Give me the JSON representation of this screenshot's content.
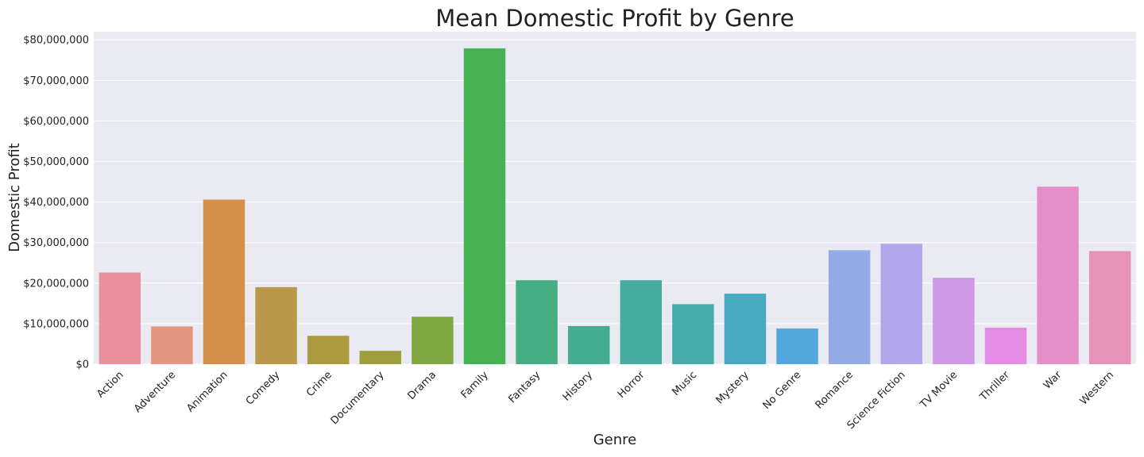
{
  "chart_data": {
    "type": "bar",
    "title": "Mean Domestic Profit by Genre",
    "xlabel": "Genre",
    "ylabel": "Domestic Profit",
    "ylim": [
      0,
      82000000
    ],
    "yticks": [
      0,
      10000000,
      20000000,
      30000000,
      40000000,
      50000000,
      60000000,
      70000000,
      80000000
    ],
    "ytick_labels": [
      "$0",
      "$10,000,000",
      "$20,000,000",
      "$30,000,000",
      "$40,000,000",
      "$50,000,000",
      "$60,000,000",
      "$70,000,000",
      "$80,000,000"
    ],
    "grid": true,
    "legend": "none",
    "categories": [
      "Action",
      "Adventure",
      "Animation",
      "Comedy",
      "Crime",
      "Documentary",
      "Drama",
      "Family",
      "Fantasy",
      "History",
      "Horror",
      "Music",
      "Mystery",
      "No Genre",
      "Romance",
      "Science Fiction",
      "TV Movie",
      "Thriller",
      "War",
      "Western"
    ],
    "values": [
      22600000,
      9300000,
      40600000,
      19000000,
      7000000,
      3300000,
      11700000,
      77900000,
      20700000,
      9400000,
      20700000,
      14800000,
      17400000,
      8800000,
      28100000,
      29700000,
      21300000,
      9000000,
      43800000,
      27900000
    ],
    "colors": [
      "#e8919c",
      "#e4957e",
      "#d49048",
      "#b9984a",
      "#ac9a3f",
      "#9e9e3c",
      "#7fa845",
      "#46b152",
      "#45ae82",
      "#44ad90",
      "#46aca0",
      "#47abad",
      "#48aac0",
      "#50a8dd",
      "#93abe6",
      "#b2a6ec",
      "#cf98e6",
      "#e58be3",
      "#e58fc9",
      "#e792b8"
    ],
    "background": "#eaeaf2",
    "gridline_color": "#ffffff"
  }
}
